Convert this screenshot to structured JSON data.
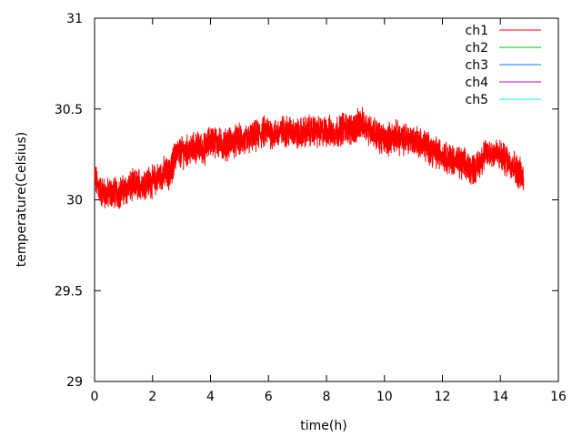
{
  "chart_data": {
    "type": "line",
    "xlabel": "time(h)",
    "ylabel": "temperature(Celsius)",
    "xlim": [
      0,
      16
    ],
    "ylim": [
      29,
      31
    ],
    "x_ticks": [
      0,
      2,
      4,
      6,
      8,
      10,
      12,
      14,
      16
    ],
    "y_ticks": [
      29,
      29.5,
      30,
      30.5,
      31
    ],
    "y_tick_labels": [
      "29",
      "29.5",
      "30",
      "30.5",
      "31"
    ],
    "grid": false,
    "legend_position": "top-right",
    "series": [
      {
        "name": "ch1",
        "color": "#ff0000",
        "x": [
          0,
          0.2,
          0.4,
          0.6,
          0.8,
          1.0,
          1.2,
          1.4,
          1.6,
          1.8,
          2.0,
          2.2,
          2.4,
          2.6,
          2.7,
          2.8,
          3.0,
          3.2,
          3.4,
          3.6,
          3.8,
          4.0,
          4.2,
          4.4,
          4.6,
          4.8,
          5.0,
          5.2,
          5.4,
          5.6,
          5.8,
          6.0,
          6.2,
          6.4,
          6.6,
          6.8,
          7.0,
          7.2,
          7.4,
          7.6,
          7.8,
          8.0,
          8.2,
          8.4,
          8.6,
          8.8,
          9.0,
          9.2,
          9.4,
          9.6,
          9.8,
          10.0,
          10.2,
          10.4,
          10.6,
          10.8,
          11.0,
          11.2,
          11.4,
          11.6,
          11.8,
          12.0,
          12.2,
          12.4,
          12.6,
          12.8,
          13.0,
          13.2,
          13.4,
          13.6,
          13.8,
          14.0,
          14.2,
          14.4,
          14.6,
          14.8
        ],
        "y": [
          30.12,
          30.05,
          30.03,
          30.04,
          30.04,
          30.05,
          30.07,
          30.08,
          30.09,
          30.1,
          30.1,
          30.12,
          30.15,
          30.14,
          30.2,
          30.25,
          30.26,
          30.27,
          30.28,
          30.29,
          30.28,
          30.33,
          30.32,
          30.3,
          30.31,
          30.32,
          30.33,
          30.32,
          30.34,
          30.35,
          30.37,
          30.38,
          30.36,
          30.37,
          30.38,
          30.38,
          30.36,
          30.37,
          30.38,
          30.38,
          30.37,
          30.38,
          30.37,
          30.38,
          30.4,
          30.39,
          30.4,
          30.42,
          30.4,
          30.38,
          30.35,
          30.33,
          30.34,
          30.35,
          30.33,
          30.34,
          30.33,
          30.32,
          30.3,
          30.28,
          30.26,
          30.25,
          30.23,
          30.22,
          30.2,
          30.19,
          30.17,
          30.18,
          30.24,
          30.26,
          30.26,
          30.24,
          30.22,
          30.2,
          30.16,
          30.12
        ]
      },
      {
        "name": "ch2",
        "color": "#00c000",
        "x": [],
        "y": []
      },
      {
        "name": "ch3",
        "color": "#0080ff",
        "x": [],
        "y": []
      },
      {
        "name": "ch4",
        "color": "#c000ff",
        "x": [],
        "y": []
      },
      {
        "name": "ch5",
        "color": "#00eeee",
        "x": [],
        "y": []
      }
    ]
  }
}
